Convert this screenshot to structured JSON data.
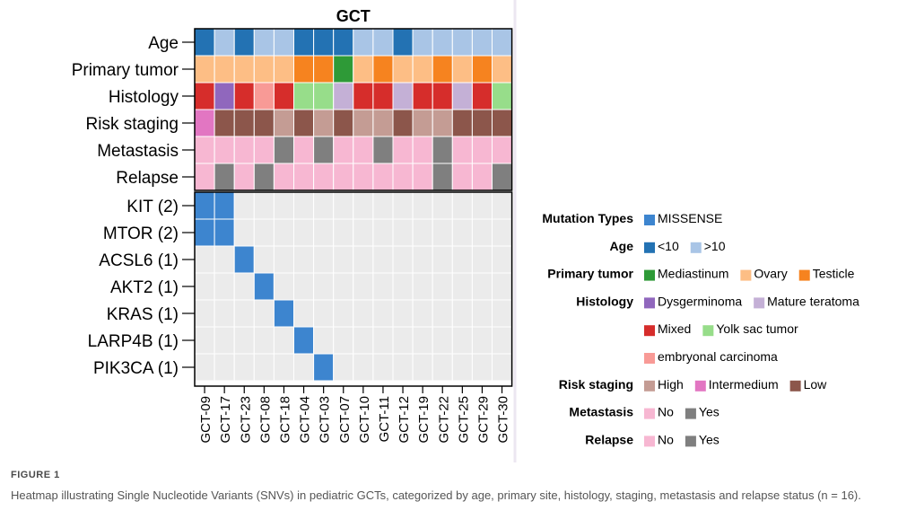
{
  "chart_data": {
    "type": "heatmap",
    "title": "GCT",
    "samples": [
      "GCT-09",
      "GCT-17",
      "GCT-23",
      "GCT-08",
      "GCT-18",
      "GCT-04",
      "GCT-03",
      "GCT-07",
      "GCT-10",
      "GCT-11",
      "GCT-12",
      "GCT-19",
      "GCT-22",
      "GCT-25",
      "GCT-29",
      "GCT-30"
    ],
    "annotation_tracks": [
      {
        "name": "Age",
        "values": [
          "<10",
          ">10",
          "<10",
          ">10",
          ">10",
          "<10",
          "<10",
          "<10",
          ">10",
          ">10",
          "<10",
          ">10",
          ">10",
          ">10",
          ">10",
          ">10"
        ]
      },
      {
        "name": "Primary tumor",
        "values": [
          "Ovary",
          "Ovary",
          "Ovary",
          "Ovary",
          "Ovary",
          "Testicle",
          "Testicle",
          "Mediastinum",
          "Ovary",
          "Testicle",
          "Ovary",
          "Ovary",
          "Testicle",
          "Ovary",
          "Testicle",
          "Ovary"
        ]
      },
      {
        "name": "Histology",
        "values": [
          "Mixed",
          "Dysgerminoma",
          "Mixed",
          "embryonal carcinoma",
          "Mixed",
          "Yolk sac tumor",
          "Yolk sac tumor",
          "Mature teratoma",
          "Mixed",
          "Mixed",
          "Mature teratoma",
          "Mixed",
          "Mixed",
          "Mature teratoma",
          "Mixed",
          "Yolk sac tumor"
        ]
      },
      {
        "name": "Risk staging",
        "values": [
          "Intermedium",
          "Low",
          "Low",
          "Low",
          "High",
          "Low",
          "High",
          "Low",
          "High",
          "High",
          "Low",
          "High",
          "High",
          "Low",
          "Low",
          "Low"
        ]
      },
      {
        "name": "Metastasis",
        "values": [
          "No",
          "No",
          "No",
          "No",
          "Yes",
          "No",
          "Yes",
          "No",
          "No",
          "Yes",
          "No",
          "No",
          "Yes",
          "No",
          "No",
          "No"
        ]
      },
      {
        "name": "Relapse",
        "values": [
          "No",
          "Yes",
          "No",
          "Yes",
          "No",
          "No",
          "No",
          "No",
          "No",
          "No",
          "No",
          "No",
          "Yes",
          "No",
          "No",
          "Yes"
        ]
      }
    ],
    "genes": [
      {
        "label": "KIT (2)",
        "mutated": [
          "GCT-09",
          "GCT-17"
        ]
      },
      {
        "label": "MTOR (2)",
        "mutated": [
          "GCT-09",
          "GCT-17"
        ]
      },
      {
        "label": "ACSL6 (1)",
        "mutated": [
          "GCT-23"
        ]
      },
      {
        "label": "AKT2 (1)",
        "mutated": [
          "GCT-08"
        ]
      },
      {
        "label": "KRAS (1)",
        "mutated": [
          "GCT-18"
        ]
      },
      {
        "label": "LARP4B (1)",
        "mutated": [
          "GCT-04"
        ]
      },
      {
        "label": "PIK3CA (1)",
        "mutated": [
          "GCT-03"
        ]
      }
    ],
    "legend": [
      {
        "title": "Mutation Types",
        "items": [
          {
            "label": "MISSENSE",
            "color": "#3d85cf"
          }
        ]
      },
      {
        "title": "Age",
        "items": [
          {
            "label": "<10",
            "color": "#2372b3"
          },
          {
            "label": ">10",
            "color": "#a9c5e6"
          }
        ]
      },
      {
        "title": "Primary tumor",
        "items": [
          {
            "label": "Mediastinum",
            "color": "#2e9a37"
          },
          {
            "label": "Ovary",
            "color": "#fdbe85"
          },
          {
            "label": "Testicle",
            "color": "#f6831f"
          }
        ]
      },
      {
        "title": "Histology",
        "items": [
          {
            "label": "Dysgerminoma",
            "color": "#9067bd"
          },
          {
            "label": "Mature teratoma",
            "color": "#c4b0d6"
          }
        ]
      },
      {
        "title": "",
        "items": [
          {
            "label": "Mixed",
            "color": "#d62d2b"
          },
          {
            "label": "Yolk sac tumor",
            "color": "#97dd8a"
          }
        ]
      },
      {
        "title": "",
        "items": [
          {
            "label": "embryonal carcinoma",
            "color": "#f89a96"
          }
        ]
      },
      {
        "title": "Risk staging",
        "items": [
          {
            "label": "High",
            "color": "#c49c94"
          },
          {
            "label": "Intermedium",
            "color": "#e276c2"
          },
          {
            "label": "Low",
            "color": "#8c564b"
          }
        ]
      },
      {
        "title": "Metastasis",
        "items": [
          {
            "label": "No",
            "color": "#f7b7d2"
          },
          {
            "label": "Yes",
            "color": "#7f7f7f"
          }
        ]
      },
      {
        "title": "Relapse",
        "items": [
          {
            "label": "No",
            "color": "#f7b7d2"
          },
          {
            "label": "Yes",
            "color": "#7f7f7f"
          }
        ]
      }
    ],
    "colors": {
      "Age": {
        "<10": "#2372b3",
        ">10": "#a9c5e6"
      },
      "Primary tumor": {
        "Mediastinum": "#2e9a37",
        "Ovary": "#fdbe85",
        "Testicle": "#f6831f"
      },
      "Histology": {
        "Dysgerminoma": "#9067bd",
        "Mature teratoma": "#c4b0d6",
        "Mixed": "#d62d2b",
        "Yolk sac tumor": "#97dd8a",
        "embryonal carcinoma": "#f89a96"
      },
      "Risk staging": {
        "High": "#c49c94",
        "Intermedium": "#e276c2",
        "Low": "#8c564b"
      },
      "Metastasis": {
        "No": "#f7b7d2",
        "Yes": "#7f7f7f"
      },
      "Relapse": {
        "No": "#f7b7d2",
        "Yes": "#7f7f7f"
      },
      "mutation": "#3d85cf",
      "empty": "#ebebeb"
    }
  },
  "caption": {
    "label": "FIGURE 1",
    "text": "Heatmap illustrating Single Nucleotide Variants (SNVs) in pediatric GCTs, categorized by age, primary site, histology, staging, metastasis and relapse status (n = 16)."
  }
}
